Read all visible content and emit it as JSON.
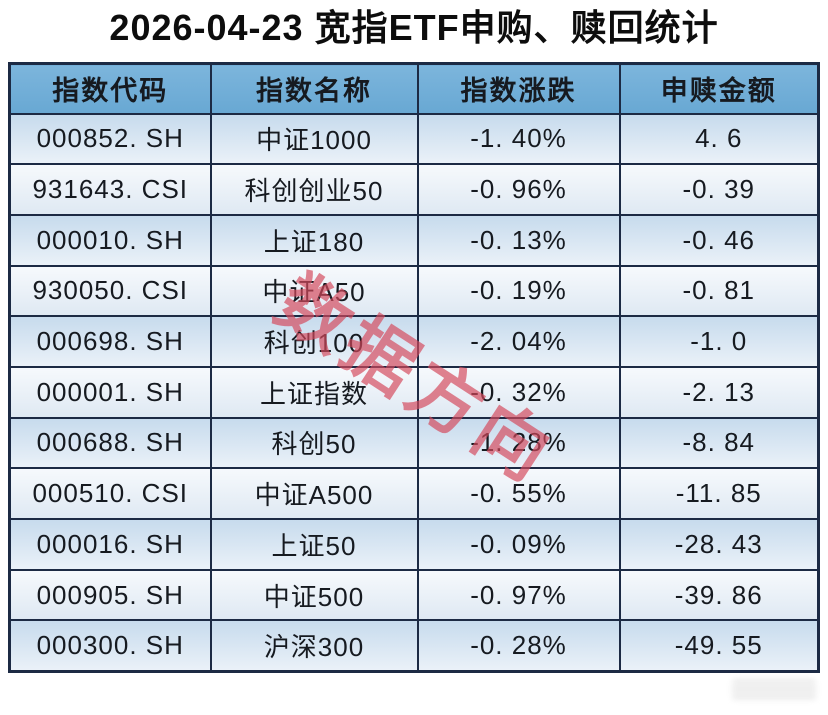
{
  "title": "2026-04-23 宽指ETF申购、赎回统计",
  "watermark": {
    "text": "数据方向"
  },
  "colors": {
    "header-bg-top": "#7cb5dc",
    "header-bg-bottom": "#68a8d3",
    "border": "#1c2a44",
    "row-odd-top": "#c7dbed",
    "row-odd-bottom": "#eaf1f8",
    "row-even-top": "#f6f9fc",
    "row-even-bottom": "#dfe9f3",
    "text": "#161a20",
    "watermark": "#d5495c"
  },
  "table": {
    "headers": [
      "指数代码",
      "指数名称",
      "指数涨跌",
      "申赎金额"
    ],
    "rows": [
      [
        "000852. SH",
        "中证1000",
        "-1. 40%",
        "4. 6"
      ],
      [
        "931643. CSI",
        "科创创业50",
        "-0. 96%",
        "-0. 39"
      ],
      [
        "000010. SH",
        "上证180",
        "-0. 13%",
        "-0. 46"
      ],
      [
        "930050. CSI",
        "中证A50",
        "-0. 19%",
        "-0. 81"
      ],
      [
        "000698. SH",
        "科创100",
        "-2. 04%",
        "-1. 0"
      ],
      [
        "000001. SH",
        "上证指数",
        "-0. 32%",
        "-2. 13"
      ],
      [
        "000688. SH",
        "科创50",
        "-1. 28%",
        "-8. 84"
      ],
      [
        "000510. CSI",
        "中证A500",
        "-0. 55%",
        "-11. 85"
      ],
      [
        "000016. SH",
        "上证50",
        "-0. 09%",
        "-28. 43"
      ],
      [
        "000905. SH",
        "中证500",
        "-0. 97%",
        "-39. 86"
      ],
      [
        "000300. SH",
        "沪深300",
        "-0. 28%",
        "-49. 55"
      ]
    ]
  },
  "chart_data": {
    "type": "table",
    "title": "2026-04-23 宽指ETF申购、赎回统计",
    "columns": [
      "指数代码",
      "指数名称",
      "指数涨跌",
      "申赎金额"
    ],
    "rows": [
      {
        "index_code": "000852.SH",
        "index_name": "中证1000",
        "change_pct": "-1.40%",
        "amount": 4.6
      },
      {
        "index_code": "931643.CSI",
        "index_name": "科创创业50",
        "change_pct": "-0.96%",
        "amount": -0.39
      },
      {
        "index_code": "000010.SH",
        "index_name": "上证180",
        "change_pct": "-0.13%",
        "amount": -0.46
      },
      {
        "index_code": "930050.CSI",
        "index_name": "中证A50",
        "change_pct": "-0.19%",
        "amount": -0.81
      },
      {
        "index_code": "000698.SH",
        "index_name": "科创100",
        "change_pct": "-2.04%",
        "amount": -1.0
      },
      {
        "index_code": "000001.SH",
        "index_name": "上证指数",
        "change_pct": "-0.32%",
        "amount": -2.13
      },
      {
        "index_code": "000688.SH",
        "index_name": "科创50",
        "change_pct": "-1.28%",
        "amount": -8.84
      },
      {
        "index_code": "000510.CSI",
        "index_name": "中证A500",
        "change_pct": "-0.55%",
        "amount": -11.85
      },
      {
        "index_code": "000016.SH",
        "index_name": "上证50",
        "change_pct": "-0.09%",
        "amount": -28.43
      },
      {
        "index_code": "000905.SH",
        "index_name": "中证500",
        "change_pct": "-0.97%",
        "amount": -39.86
      },
      {
        "index_code": "000300.SH",
        "index_name": "沪深300",
        "change_pct": "-0.28%",
        "amount": -49.55
      }
    ],
    "notes": {
      "watermark_text": "数据方向",
      "legend_position": "none",
      "grid": "full table borders"
    }
  }
}
